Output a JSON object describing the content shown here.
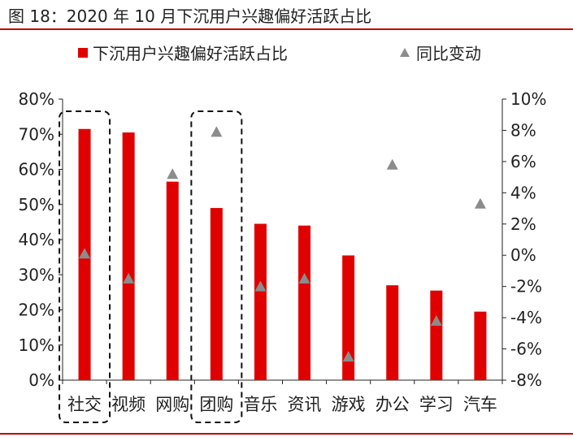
{
  "title": "图 18：2020 年 10 月下沉用户兴趣偏好活跃占比",
  "chart_data": {
    "type": "bar",
    "categories": [
      "社交",
      "视频",
      "网购",
      "团购",
      "音乐",
      "资讯",
      "游戏",
      "办公",
      "学习",
      "汽车"
    ],
    "series": [
      {
        "name": "下沉用户兴趣偏好活跃占比",
        "type": "bar",
        "axis": "left",
        "color": "#e00000",
        "values": [
          71.5,
          70.5,
          56.5,
          49,
          44.5,
          44,
          35.5,
          27,
          25.5,
          19.5
        ]
      },
      {
        "name": "同比变动",
        "type": "scatter",
        "marker": "triangle",
        "axis": "right",
        "color": "#8c8c8c",
        "values": [
          0.1,
          -1.5,
          5.2,
          7.9,
          -2.0,
          -1.5,
          -6.5,
          5.8,
          -4.2,
          3.3
        ]
      }
    ],
    "y_left": {
      "ylim": [
        0,
        80
      ],
      "ticks": [
        "0%",
        "10%",
        "20%",
        "30%",
        "40%",
        "50%",
        "60%",
        "70%",
        "80%"
      ]
    },
    "y_right": {
      "ylim": [
        -8,
        10
      ],
      "ticks": [
        "-8%",
        "-6%",
        "-4%",
        "-2%",
        "0%",
        "2%",
        "4%",
        "6%",
        "8%",
        "10%"
      ]
    },
    "highlighted_categories": [
      "社交",
      "团购"
    ],
    "legend_position": "top",
    "grid": false
  }
}
